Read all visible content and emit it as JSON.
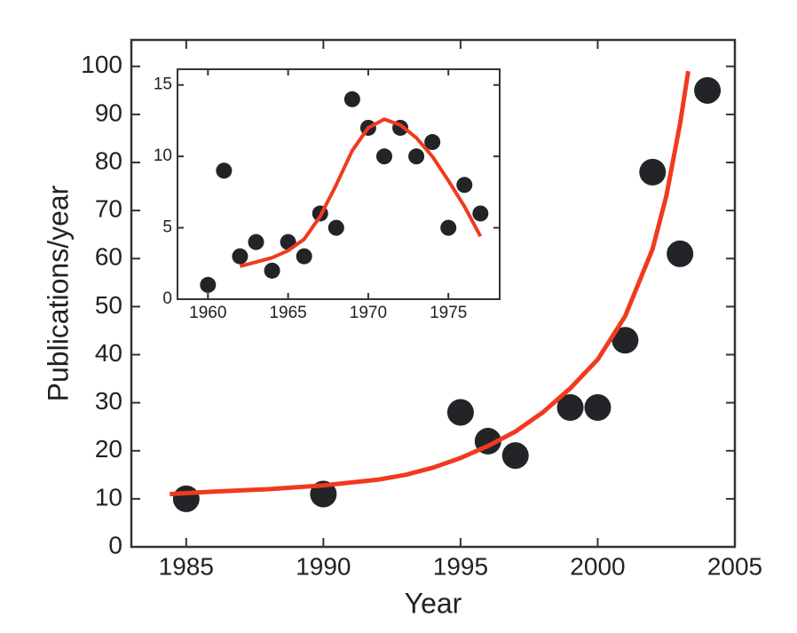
{
  "chart_data": [
    {
      "type": "scatter",
      "x_label": "Year",
      "y_label": "Publications/year",
      "xlim": [
        1983,
        2005
      ],
      "ylim": [
        0,
        105.5
      ],
      "xticks": [
        1985,
        1990,
        1995,
        2000,
        2005
      ],
      "yticks": [
        0,
        10,
        20,
        30,
        40,
        50,
        60,
        70,
        80,
        90,
        100
      ],
      "points": {
        "color": "#222428",
        "x": [
          1985,
          1990,
          1995,
          1996,
          1997,
          1999,
          2000,
          2001,
          2002,
          2003,
          2004
        ],
        "y": [
          10,
          11,
          28,
          22,
          19,
          29,
          29,
          43,
          78,
          61,
          95
        ]
      },
      "fit": {
        "color": "#f03a1e",
        "x": [
          1984.4,
          1986,
          1988,
          1990,
          1992,
          1993,
          1994,
          1995,
          1996,
          1997,
          1998,
          1999,
          2000,
          2001,
          2002,
          2002.5,
          2003,
          2003.3
        ],
        "y": [
          11,
          11.5,
          12,
          12.8,
          14,
          15,
          16.5,
          18.5,
          21,
          24,
          28,
          33,
          39,
          48,
          62,
          73,
          88,
          99
        ]
      }
    },
    {
      "type": "scatter",
      "xlim": [
        1958.1,
        1978.2
      ],
      "ylim": [
        0,
        16.1
      ],
      "xticks": [
        1960,
        1965,
        1970,
        1975
      ],
      "yticks": [
        0,
        5,
        10,
        15
      ],
      "points": {
        "color": "#222428",
        "x": [
          1960,
          1961,
          1962,
          1963,
          1964,
          1965,
          1966,
          1967,
          1968,
          1969,
          1970,
          1971,
          1972,
          1973,
          1974,
          1975,
          1976,
          1977
        ],
        "y": [
          1,
          9,
          3,
          4,
          2,
          4,
          3,
          6,
          5,
          14,
          12,
          10,
          12,
          10,
          11,
          5,
          8,
          6
        ]
      },
      "fit": {
        "color": "#f03a1e",
        "x": [
          1962,
          1963,
          1964,
          1965,
          1966,
          1967,
          1968,
          1969,
          1970,
          1971,
          1972,
          1973,
          1974,
          1975,
          1976,
          1977
        ],
        "y": [
          2.3,
          2.6,
          2.9,
          3.4,
          4.2,
          5.8,
          8,
          10.4,
          12,
          12.6,
          12.2,
          11.3,
          10,
          8.3,
          6.5,
          4.4
        ]
      }
    }
  ]
}
